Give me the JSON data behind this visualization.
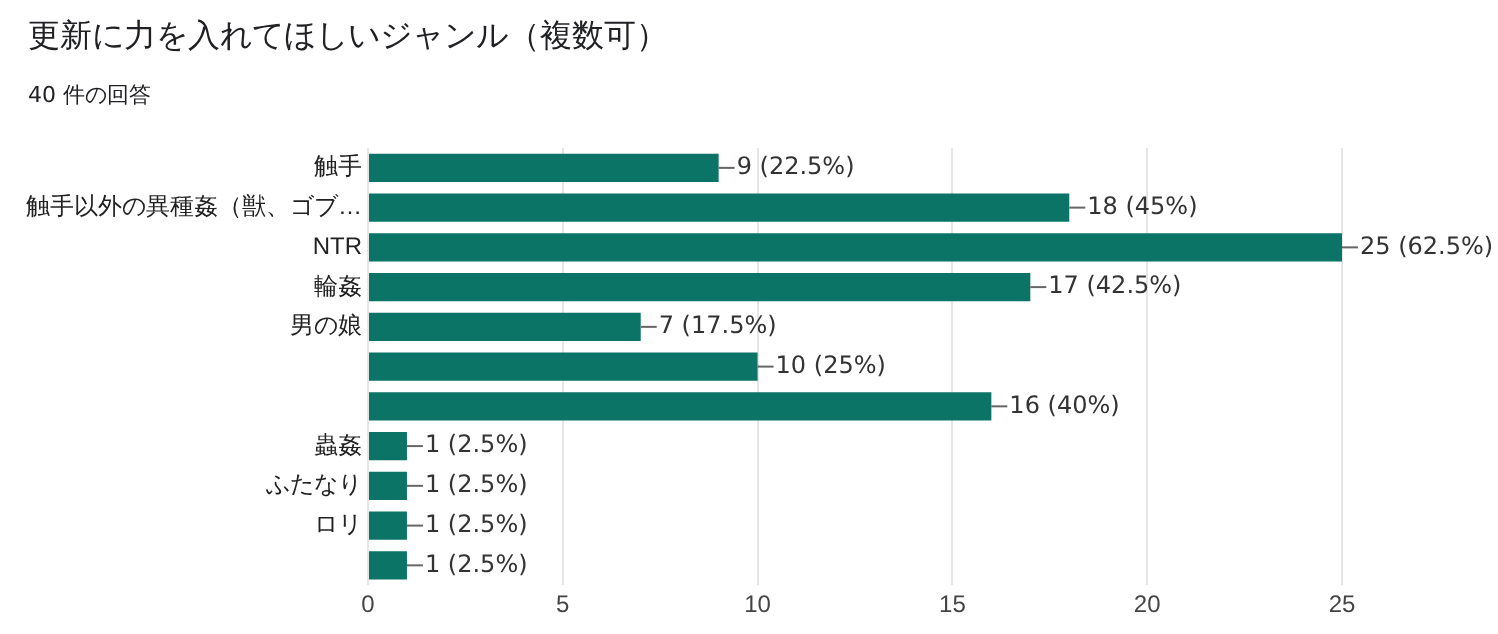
{
  "chart_data": {
    "type": "bar",
    "orientation": "horizontal",
    "title": "更新に力を入れてほしいジャンル（複数可）",
    "subtitle": "40 件の回答",
    "categories": [
      "触手",
      "触手以外の異種姦（獣、ゴブ…",
      "NTR",
      "輪姦",
      "男の娘",
      null,
      null,
      "蟲姦",
      "ふたなり",
      "ロリ",
      null
    ],
    "values": [
      9,
      18,
      25,
      17,
      7,
      10,
      16,
      1,
      1,
      1,
      1
    ],
    "value_labels": [
      "9 (22.5%)",
      "18 (45%)",
      "25 (62.5%)",
      "17 (42.5%)",
      "7 (17.5%)",
      "10 (25%)",
      "16 (40%)",
      "1 (2.5%)",
      "1 (2.5%)",
      "1 (2.5%)",
      "1 (2.5%)"
    ],
    "color": "#0b7466",
    "xlim": [
      0,
      25
    ],
    "xticks": [
      0,
      5,
      10,
      15,
      20,
      25
    ],
    "grid": "x",
    "legend": false
  }
}
